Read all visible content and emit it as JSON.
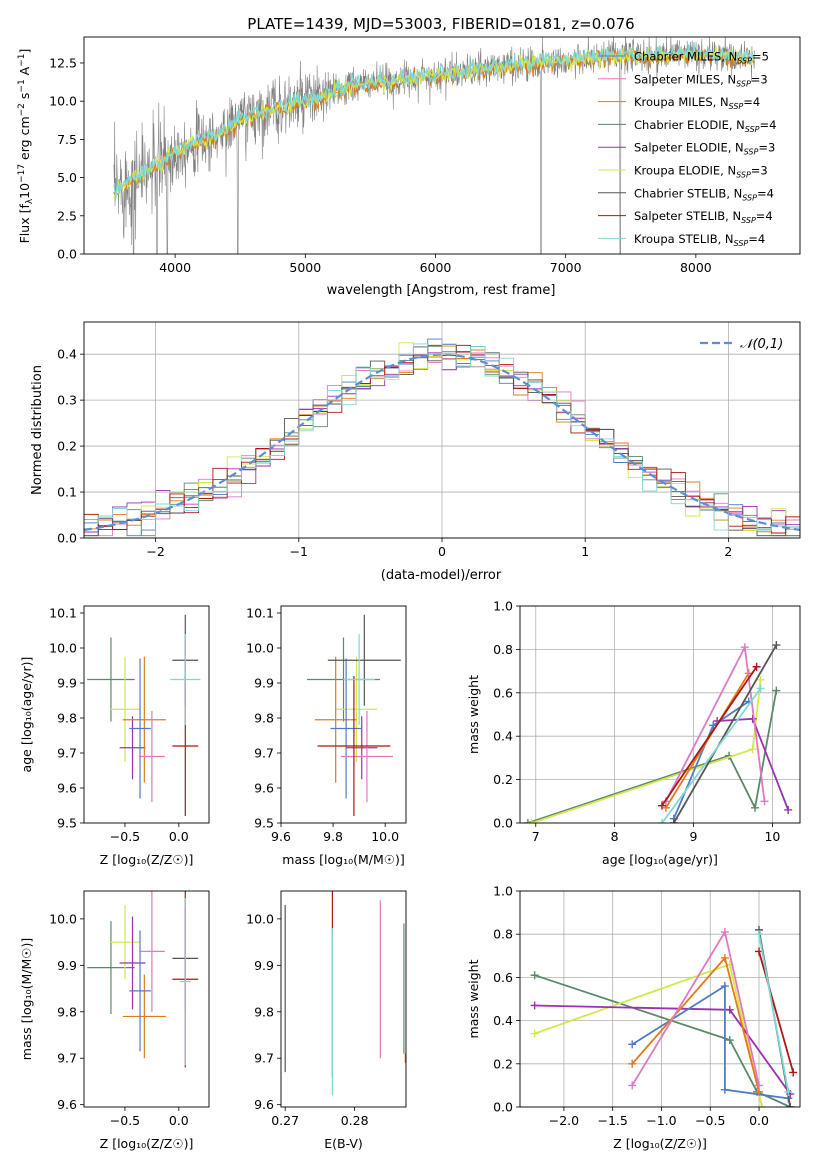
{
  "figure": {
    "title": "PLATE=1439, MJD=53003, FIBERID=0181, z=0.076"
  },
  "legend_entries": [
    {
      "name": "Chabrier MILES",
      "nssp": "5",
      "color": "#4f7cc9"
    },
    {
      "name": "Salpeter MILES",
      "nssp": "3",
      "color": "#e377c2"
    },
    {
      "name": "Kroupa MILES",
      "nssp": "4",
      "color": "#e07b1a"
    },
    {
      "name": "Chabrier ELODIE",
      "nssp": "4",
      "color": "#5a8a6a"
    },
    {
      "name": "Salpeter ELODIE",
      "nssp": "3",
      "color": "#9b30b0"
    },
    {
      "name": "Kroupa ELODIE",
      "nssp": "3",
      "color": "#d4e84a"
    },
    {
      "name": "Chabrier STELIB",
      "nssp": "4",
      "color": "#555555"
    },
    {
      "name": "Salpeter STELIB",
      "nssp": "4",
      "color": "#b01515"
    },
    {
      "name": "Kroupa STELIB",
      "nssp": "4",
      "color": "#7fd8d8"
    }
  ],
  "chart_data": [
    {
      "id": "spectrum",
      "type": "line",
      "xlabel": "wavelength [Angstrom, rest frame]",
      "ylabel_prefix": "Flux [f",
      "ylabel_mid": "10",
      "ylabel_exp1": "−17",
      "ylabel_unit": " erg cm",
      "ylabel_exp2": "−2",
      "ylabel_s": " s",
      "ylabel_exp3": "−1",
      "ylabel_a": " A",
      "ylabel_exp4": "−1",
      "ylabel_close": "]",
      "xlim": [
        3300,
        8800
      ],
      "ylim": [
        0,
        14.2
      ],
      "xticks": [
        4000,
        5000,
        6000,
        7000,
        8000
      ],
      "yticks": [
        0.0,
        2.5,
        5.0,
        7.5,
        10.0,
        12.5
      ],
      "ytick_labels": [
        "0.0",
        "2.5",
        "5.0",
        "7.5",
        "10.0",
        "12.5"
      ],
      "x_range": [
        3530,
        8450
      ],
      "continuum_x": [
        3530,
        3700,
        3900,
        4100,
        4300,
        4500,
        4700,
        4900,
        5100,
        5300,
        5500,
        5700,
        5900,
        6100,
        6300,
        6500,
        6700,
        6900,
        7100,
        7300,
        7500,
        7700,
        7900,
        8100,
        8300,
        8450
      ],
      "continuum_y": [
        4.1,
        5.0,
        6.0,
        7.2,
        7.6,
        8.8,
        9.4,
        9.8,
        10.2,
        10.8,
        11.2,
        11.3,
        11.6,
        11.8,
        12.0,
        12.3,
        12.4,
        12.6,
        12.7,
        12.9,
        13.0,
        12.9,
        13.1,
        13.0,
        12.9,
        12.8
      ],
      "model_colors": [
        "#e07b1a",
        "#d4e84a",
        "#7fd8d8"
      ],
      "data_color": "#808080",
      "dip_x": [
        3680,
        3860,
        3940,
        4480,
        6810,
        7420
      ],
      "legend": "top-right"
    },
    {
      "id": "residuals",
      "type": "histogram",
      "xlabel": "(data-model)/error",
      "ylabel": "Normed distribution",
      "xlim": [
        -2.5,
        2.5
      ],
      "ylim": [
        0,
        0.47
      ],
      "xticks": [
        -2,
        -1,
        0,
        1,
        2
      ],
      "xtick_labels": [
        "−2",
        "−1",
        "0",
        "1",
        "2"
      ],
      "yticks": [
        0.0,
        0.1,
        0.2,
        0.3,
        0.4
      ],
      "ytick_labels": [
        "0.0",
        "0.1",
        "0.2",
        "0.3",
        "0.4"
      ],
      "bin_width": 0.1,
      "grid": true,
      "reference_label": "𝒩(0,1)",
      "reference_color": "#5a8fd8",
      "legend": "top-right"
    },
    {
      "id": "age-z",
      "type": "errorbar",
      "xlabel": "Z [log₁₀(Z/Z☉)]",
      "ylabel": "age  [log₁₀(age/yr)]",
      "xlim": [
        -0.88,
        0.28
      ],
      "ylim": [
        9.5,
        10.12
      ],
      "xticks": [
        -0.5,
        0.0
      ],
      "xtick_labels": [
        "−0.5",
        "0.0"
      ],
      "yticks": [
        9.5,
        9.6,
        9.7,
        9.8,
        9.9,
        10.0,
        10.1
      ],
      "ytick_labels": [
        "9.5",
        "9.6",
        "9.7",
        "9.8",
        "9.9",
        "10.0",
        "10.1"
      ],
      "points": [
        {
          "x": -0.63,
          "y": 9.91,
          "xerr": 0.22,
          "yerr": 0.12,
          "color": "#5a8a6a"
        },
        {
          "x": -0.5,
          "y": 9.825,
          "xerr": 0.14,
          "yerr": 0.15,
          "color": "#d4e84a"
        },
        {
          "x": -0.43,
          "y": 9.715,
          "xerr": 0.12,
          "yerr": 0.09,
          "color": "#9b30b0"
        },
        {
          "x": -0.32,
          "y": 9.795,
          "xerr": 0.2,
          "yerr": 0.18,
          "color": "#e07b1a"
        },
        {
          "x": -0.36,
          "y": 9.77,
          "xerr": 0.1,
          "yerr": 0.2,
          "color": "#4f7cc9"
        },
        {
          "x": -0.25,
          "y": 9.69,
          "xerr": 0.12,
          "yerr": 0.13,
          "color": "#e377c2"
        },
        {
          "x": 0.06,
          "y": 9.965,
          "xerr": 0.12,
          "yerr": 0.13,
          "color": "#555555"
        },
        {
          "x": 0.06,
          "y": 9.72,
          "xerr": 0.12,
          "yerr": 0.2,
          "color": "#b01515"
        },
        {
          "x": 0.06,
          "y": 9.91,
          "xerr": 0.14,
          "yerr": 0.13,
          "color": "#7fd8d8"
        }
      ]
    },
    {
      "id": "age-mass",
      "type": "errorbar",
      "xlabel": "mass [log₁₀(M/M☉)]",
      "ylabel": "",
      "xlim": [
        9.6,
        10.08
      ],
      "ylim": [
        9.5,
        10.12
      ],
      "xticks": [
        9.6,
        9.8,
        10.0
      ],
      "xtick_labels": [
        "9.6",
        "9.8",
        "10.0"
      ],
      "yticks": [
        9.5,
        9.6,
        9.7,
        9.8,
        9.9,
        10.0,
        10.1
      ],
      "ytick_labels": [
        "9.5",
        "9.6",
        "9.7",
        "9.8",
        "9.9",
        "10.0",
        "10.1"
      ],
      "points": [
        {
          "x": 9.84,
          "y": 9.91,
          "xerr": 0.14,
          "yerr": 0.12,
          "color": "#5a8a6a"
        },
        {
          "x": 9.89,
          "y": 9.825,
          "xerr": 0.08,
          "yerr": 0.15,
          "color": "#d4e84a"
        },
        {
          "x": 9.91,
          "y": 9.715,
          "xerr": 0.06,
          "yerr": 0.09,
          "color": "#9b30b0"
        },
        {
          "x": 9.81,
          "y": 9.795,
          "xerr": 0.08,
          "yerr": 0.18,
          "color": "#e07b1a"
        },
        {
          "x": 9.85,
          "y": 9.77,
          "xerr": 0.06,
          "yerr": 0.2,
          "color": "#4f7cc9"
        },
        {
          "x": 9.93,
          "y": 9.69,
          "xerr": 0.1,
          "yerr": 0.13,
          "color": "#e377c2"
        },
        {
          "x": 9.92,
          "y": 9.965,
          "xerr": 0.14,
          "yerr": 0.13,
          "color": "#555555"
        },
        {
          "x": 9.88,
          "y": 9.72,
          "xerr": 0.14,
          "yerr": 0.2,
          "color": "#b01515"
        },
        {
          "x": 9.9,
          "y": 9.91,
          "xerr": 0.06,
          "yerr": 0.13,
          "color": "#7fd8d8"
        }
      ]
    },
    {
      "id": "massweight-age",
      "type": "line",
      "xlabel": "age  [log₁₀(age/yr)]",
      "ylabel": "mass weight",
      "xlim": [
        6.8,
        10.35
      ],
      "ylim": [
        0,
        1
      ],
      "xticks": [
        7,
        8,
        9,
        10
      ],
      "xtick_labels": [
        "7",
        "8",
        "9",
        "10"
      ],
      "yticks": [
        0.0,
        0.2,
        0.4,
        0.6,
        0.8,
        1.0
      ],
      "ytick_labels": [
        "0.0",
        "0.2",
        "0.4",
        "0.6",
        "0.8",
        "1.0"
      ],
      "grid": true,
      "series": [
        {
          "color": "#5a8a6a",
          "x": [
            6.9,
            9.45,
            9.78,
            10.05
          ],
          "y": [
            0.0,
            0.31,
            0.07,
            0.61
          ]
        },
        {
          "color": "#d4e84a",
          "x": [
            6.95,
            9.75,
            9.85
          ],
          "y": [
            0.0,
            0.34,
            0.66
          ]
        },
        {
          "color": "#9b30b0",
          "x": [
            9.3,
            9.75,
            10.2
          ],
          "y": [
            0.47,
            0.48,
            0.06
          ]
        },
        {
          "color": "#4f7cc9",
          "x": [
            8.75,
            9.25,
            9.7
          ],
          "y": [
            0.02,
            0.45,
            0.56
          ]
        },
        {
          "color": "#e07b1a",
          "x": [
            8.65,
            9.7
          ],
          "y": [
            0.07,
            0.69
          ]
        },
        {
          "color": "#e377c2",
          "x": [
            8.65,
            9.65,
            9.9
          ],
          "y": [
            0.1,
            0.81,
            0.1
          ]
        },
        {
          "color": "#555555",
          "x": [
            8.75,
            10.05
          ],
          "y": [
            0.0,
            0.82
          ]
        },
        {
          "color": "#b01515",
          "x": [
            8.6,
            9.8
          ],
          "y": [
            0.08,
            0.72
          ]
        },
        {
          "color": "#7fd8d8",
          "x": [
            8.6,
            9.85
          ],
          "y": [
            0.0,
            0.62
          ]
        }
      ]
    },
    {
      "id": "mass-z",
      "type": "errorbar",
      "xlabel": "Z [log₁₀(Z/Z☉)]",
      "ylabel": "mass [log₁₀(M/M☉)]",
      "xlim": [
        -0.88,
        0.28
      ],
      "ylim": [
        9.595,
        10.06
      ],
      "xticks": [
        -0.5,
        0.0
      ],
      "xtick_labels": [
        "−0.5",
        "0.0"
      ],
      "yticks": [
        9.6,
        9.7,
        9.8,
        9.9,
        10.0
      ],
      "ytick_labels": [
        "9.6",
        "9.7",
        "9.8",
        "9.9",
        "10.0"
      ],
      "points": [
        {
          "x": -0.63,
          "y": 9.895,
          "xerr": 0.22,
          "yerr": 0.1,
          "color": "#5a8a6a"
        },
        {
          "x": -0.5,
          "y": 9.95,
          "xerr": 0.14,
          "yerr": 0.08,
          "color": "#d4e84a"
        },
        {
          "x": -0.43,
          "y": 9.905,
          "xerr": 0.12,
          "yerr": 0.1,
          "color": "#9b30b0"
        },
        {
          "x": -0.32,
          "y": 9.79,
          "xerr": 0.2,
          "yerr": 0.09,
          "color": "#e07b1a"
        },
        {
          "x": -0.36,
          "y": 9.845,
          "xerr": 0.1,
          "yerr": 0.13,
          "color": "#4f7cc9"
        },
        {
          "x": -0.25,
          "y": 9.93,
          "xerr": 0.12,
          "yerr": 0.13,
          "color": "#e377c2"
        },
        {
          "x": 0.06,
          "y": 9.915,
          "xerr": 0.12,
          "yerr": 0.11,
          "color": "#555555"
        },
        {
          "x": 0.06,
          "y": 9.87,
          "xerr": 0.12,
          "yerr": 0.19,
          "color": "#b01515"
        },
        {
          "x": 0.06,
          "y": 9.865,
          "xerr": 0.05,
          "yerr": 0.18,
          "color": "#7fd8d8"
        }
      ]
    },
    {
      "id": "mass-ebv",
      "type": "errorbar",
      "xlabel": "E(B-V)",
      "ylabel": "",
      "xlim": [
        0.2694,
        0.2874
      ],
      "ylim": [
        9.595,
        10.06
      ],
      "xticks": [
        0.27,
        0.28
      ],
      "xtick_labels": [
        "0.27",
        "0.28"
      ],
      "yticks": [
        9.6,
        9.7,
        9.8,
        9.9,
        10.0
      ],
      "ytick_labels": [
        "9.6",
        "9.7",
        "9.8",
        "9.9",
        "10.0"
      ],
      "points": [
        {
          "x": 0.27,
          "y": 9.85,
          "xerr": 0,
          "yerr": 0.18,
          "color": "#555555"
        },
        {
          "x": 0.2768,
          "y": 9.86,
          "xerr": 0,
          "yerr": 0.2,
          "color": "#b01515"
        },
        {
          "x": 0.2768,
          "y": 9.8,
          "xerr": 0,
          "yerr": 0.18,
          "color": "#7fd8d8"
        },
        {
          "x": 0.2837,
          "y": 9.87,
          "xerr": 0,
          "yerr": 0.17,
          "color": "#e377c2"
        },
        {
          "x": 0.2871,
          "y": 9.85,
          "xerr": 0,
          "yerr": 0.14,
          "color": "#5a8a6a"
        },
        {
          "x": 0.2873,
          "y": 9.7,
          "xerr": 0,
          "yerr": 0.01,
          "color": "#e07b1a"
        }
      ]
    },
    {
      "id": "massweight-z",
      "type": "line",
      "xlabel": "Z [log₁₀(Z/Z☉)]",
      "ylabel": "mass weight",
      "xlim": [
        -2.45,
        0.42
      ],
      "ylim": [
        0,
        1
      ],
      "xticks": [
        -2.0,
        -1.5,
        -1.0,
        -0.5,
        0.0
      ],
      "xtick_labels": [
        "−2.0",
        "−1.5",
        "−1.0",
        "−0.5",
        "0.0"
      ],
      "yticks": [
        0.0,
        0.2,
        0.4,
        0.6,
        0.8,
        1.0
      ],
      "ytick_labels": [
        "0.0",
        "0.2",
        "0.4",
        "0.6",
        "0.8",
        "1.0"
      ],
      "grid": true,
      "series": [
        {
          "color": "#5a8a6a",
          "x": [
            -2.3,
            -0.3,
            -0.02,
            0.32
          ],
          "y": [
            0.61,
            0.31,
            0.07,
            0.0
          ]
        },
        {
          "color": "#d4e84a",
          "x": [
            -2.3,
            -0.3,
            0.03
          ],
          "y": [
            0.34,
            0.66,
            0.0
          ]
        },
        {
          "color": "#9b30b0",
          "x": [
            -2.3,
            -0.3,
            0.32
          ],
          "y": [
            0.47,
            0.45,
            0.06
          ]
        },
        {
          "color": "#4f7cc9",
          "x": [
            -1.3,
            -0.35,
            -0.35,
            0.3
          ],
          "y": [
            0.29,
            0.56,
            0.08,
            0.04
          ]
        },
        {
          "color": "#e07b1a",
          "x": [
            -1.3,
            -0.35,
            0.0
          ],
          "y": [
            0.2,
            0.69,
            0.07
          ]
        },
        {
          "color": "#e377c2",
          "x": [
            -1.3,
            -0.35,
            0.0
          ],
          "y": [
            0.1,
            0.81,
            0.1
          ]
        },
        {
          "color": "#555555",
          "x": [
            0.0,
            0.32
          ],
          "y": [
            0.82,
            0.0
          ]
        },
        {
          "color": "#b01515",
          "x": [
            0.0,
            0.35
          ],
          "y": [
            0.72,
            0.16
          ]
        },
        {
          "color": "#7fd8d8",
          "x": [
            0.0,
            0.3
          ],
          "y": [
            0.8,
            0.07
          ]
        }
      ]
    }
  ]
}
